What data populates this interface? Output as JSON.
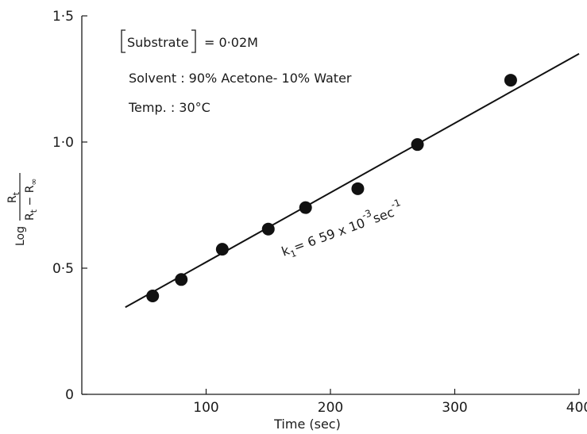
{
  "chart_data": {
    "type": "scatter",
    "xlabel": "Time (sec)",
    "ylabel": {
      "prefix": "Log",
      "numerator": "R",
      "numerator_sub": "t",
      "denominator": "R",
      "denominator_sub1": "t",
      "denominator_mid": " − R",
      "denominator_sub2": "∞"
    },
    "xlim": [
      0,
      400
    ],
    "ylim": [
      0,
      1.5
    ],
    "xticks": [
      100,
      200,
      300,
      400
    ],
    "xtick_labels": [
      "100",
      "200",
      "300",
      "400"
    ],
    "yticks": [
      0,
      0.5,
      1.0,
      1.5
    ],
    "ytick_labels": [
      "0",
      "0·5",
      "1·0",
      "1·5"
    ],
    "points": [
      {
        "x": 57,
        "y": 0.39
      },
      {
        "x": 80,
        "y": 0.455
      },
      {
        "x": 113,
        "y": 0.575
      },
      {
        "x": 150,
        "y": 0.655
      },
      {
        "x": 180,
        "y": 0.74
      },
      {
        "x": 222,
        "y": 0.815
      },
      {
        "x": 270,
        "y": 0.99
      },
      {
        "x": 345,
        "y": 1.245
      }
    ],
    "fit_line": {
      "x": [
        35,
        400
      ],
      "y": [
        0.345,
        1.35
      ]
    },
    "annotations": {
      "substrate_label": "Substrate",
      "substrate_value": "= 0·02M",
      "solvent": "Solvent : 90% Acetone- 10% Water",
      "temp": "Temp.  :  30°C",
      "rate_prefix": "k",
      "rate_sub": "1",
      "rate_mid": "= 6 59 x 10",
      "rate_exp": "-3",
      "rate_unit": "sec",
      "rate_unit_exp": "-1"
    },
    "grid": false,
    "marker_color": "#111111"
  }
}
